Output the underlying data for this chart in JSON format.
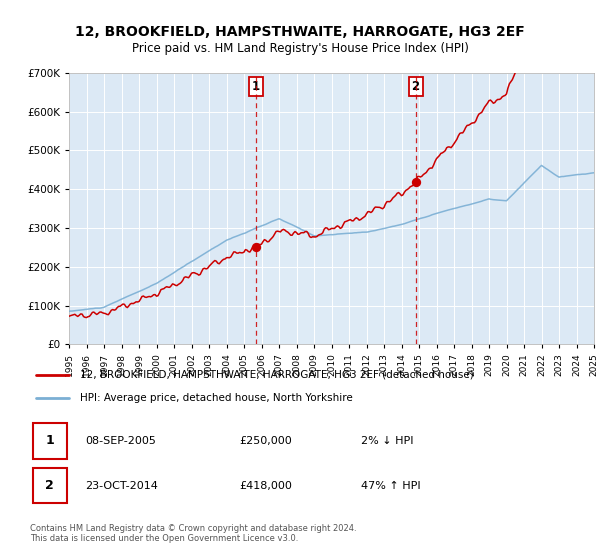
{
  "title": "12, BROOKFIELD, HAMPSTHWAITE, HARROGATE, HG3 2EF",
  "subtitle": "Price paid vs. HM Land Registry's House Price Index (HPI)",
  "legend_line1": "12, BROOKFIELD, HAMPSTHWAITE, HARROGATE, HG3 2EF (detached house)",
  "legend_line2": "HPI: Average price, detached house, North Yorkshire",
  "sale1_date": "08-SEP-2005",
  "sale1_price": "£250,000",
  "sale1_hpi": "2% ↓ HPI",
  "sale2_date": "23-OCT-2014",
  "sale2_price": "£418,000",
  "sale2_hpi": "47% ↑ HPI",
  "footer": "Contains HM Land Registry data © Crown copyright and database right 2024.\nThis data is licensed under the Open Government Licence v3.0.",
  "property_color": "#cc0000",
  "hpi_color": "#7bafd4",
  "sale1_x": 2005.69,
  "sale1_y": 250000,
  "sale2_x": 2014.81,
  "sale2_y": 418000,
  "vline1_x": 2005.69,
  "vline2_x": 2014.81,
  "xmin": 1995,
  "xmax": 2025,
  "ymin": 0,
  "ymax": 700000,
  "yticks": [
    0,
    100000,
    200000,
    300000,
    400000,
    500000,
    600000,
    700000
  ],
  "xticks": [
    1995,
    1996,
    1997,
    1998,
    1999,
    2000,
    2001,
    2002,
    2003,
    2004,
    2005,
    2006,
    2007,
    2008,
    2009,
    2010,
    2011,
    2012,
    2013,
    2014,
    2015,
    2016,
    2017,
    2018,
    2019,
    2020,
    2021,
    2022,
    2023,
    2024,
    2025
  ],
  "plot_bg_color": "#dce9f5",
  "highlight_bg_color": "#e8f0f8",
  "fig_bg_color": "#ffffff"
}
